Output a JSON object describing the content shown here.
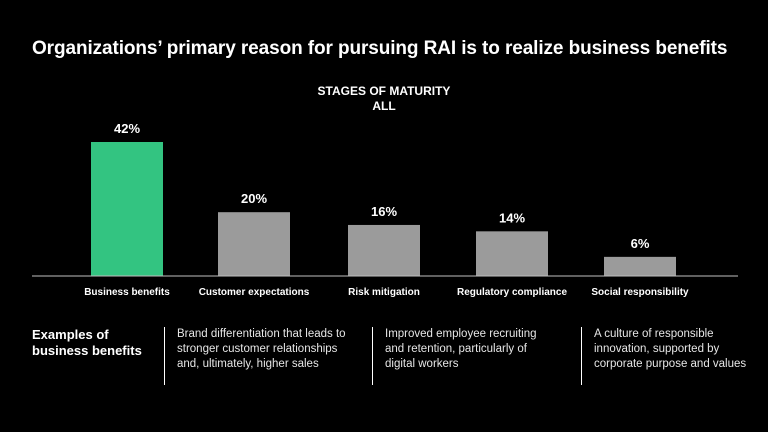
{
  "title": "Organizations’ primary reason for pursuing RAI is to realize business benefits",
  "subtitle_line1": "STAGES OF MATURITY",
  "subtitle_line2": "ALL",
  "chart_data": {
    "type": "bar",
    "title": "Organizations’ primary reason for pursuing RAI is to realize business benefits",
    "categories": [
      "Business benefits",
      "Customer expectations",
      "Risk mitigation",
      "Regulatory compliance",
      "Social responsibility"
    ],
    "values": [
      42,
      20,
      16,
      14,
      6
    ],
    "data_labels": [
      "42%",
      "20%",
      "16%",
      "14%",
      "6%"
    ],
    "ylim": [
      0,
      42
    ],
    "xlabel": "",
    "ylabel": "",
    "grid": false,
    "colors": {
      "highlight": "#33c481",
      "default": "#9b9b9b",
      "baseline": "#bfbfbf"
    }
  },
  "examples": {
    "heading": "Examples of business benefits",
    "items": [
      "Brand differentiation that leads to stronger customer relationships and, ultimately, higher sales",
      "Improved employee recruiting and retention, particularly of digital workers",
      "A culture of responsible innovation, supported by corporate purpose and values"
    ]
  }
}
